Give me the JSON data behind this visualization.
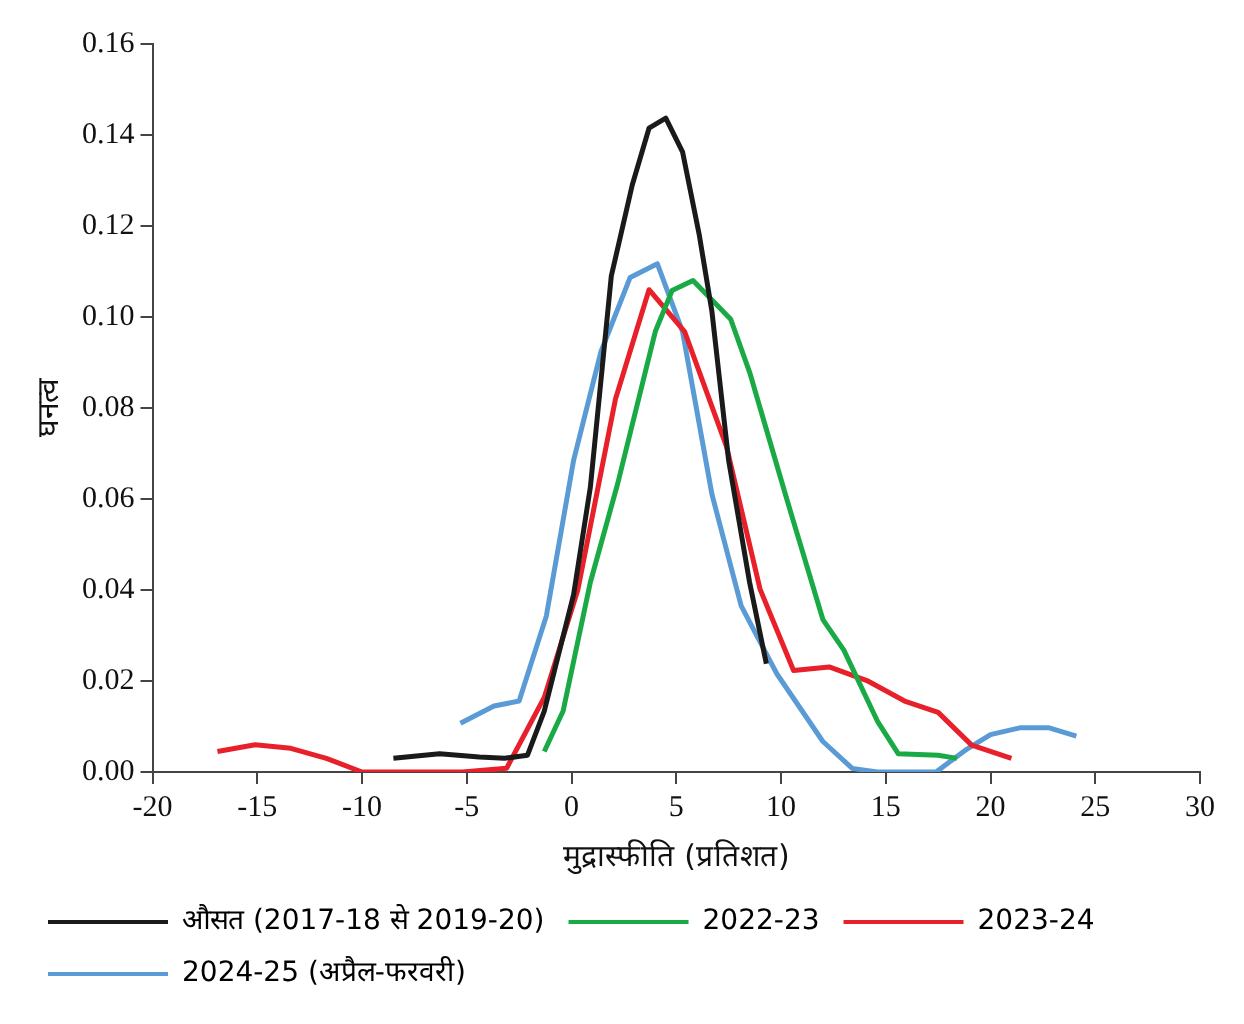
{
  "chart_data": {
    "type": "line",
    "xlabel": "मुद्रास्फीति (प्रतिशत)",
    "ylabel": "घनत्व",
    "xlim": [
      -20,
      30
    ],
    "xticks": [
      -20,
      -15,
      -10,
      -5,
      0,
      5,
      10,
      15,
      20,
      25,
      30
    ],
    "ylim": [
      0,
      0.16
    ],
    "yticks": [
      {
        "value": 0,
        "label": "0.00"
      },
      {
        "value": 0.02,
        "label": "0.02"
      },
      {
        "value": 0.04,
        "label": "0.04"
      },
      {
        "value": 0.06,
        "label": "0.06"
      },
      {
        "value": 0.08,
        "label": "0.08"
      },
      {
        "value": 0.1,
        "label": "0.10"
      },
      {
        "value": 0.12,
        "label": "0.12"
      },
      {
        "value": 0.14,
        "label": "0.14"
      },
      {
        "value": 0.16,
        "label": "0.16"
      }
    ],
    "grid": false,
    "legend": "bottom",
    "marker": "none",
    "line_style": "solid",
    "series": [
      {
        "name": "औसत (2017-18 से 2019-20)",
        "color": "#1a1a1a",
        "x": [
          -8.5,
          -6.3,
          -4.4,
          -3.2,
          -2.1,
          -1.3,
          0.1,
          0.9,
          1.9,
          2.9,
          3.7,
          4.5,
          5.3,
          6.1,
          6.7,
          7.5,
          8.5,
          9.3
        ],
        "values": [
          0.003,
          0.004,
          0.0033,
          0.003,
          0.0037,
          0.0134,
          0.039,
          0.0626,
          0.109,
          0.129,
          0.1415,
          0.1437,
          0.1363,
          0.118,
          0.1013,
          0.0685,
          0.0417,
          0.0238
        ]
      },
      {
        "name": "2022-23",
        "color": "#1aaa45",
        "x": [
          -1.3,
          -0.4,
          0.9,
          2.2,
          4.0,
          4.8,
          5.8,
          7.6,
          8.5,
          10.3,
          12.0,
          13.0,
          14.6,
          15.6,
          17.5,
          18.4
        ],
        "values": [
          0.0045,
          0.0134,
          0.0417,
          0.0633,
          0.0968,
          0.1058,
          0.108,
          0.0995,
          0.0879,
          0.0596,
          0.0335,
          0.0268,
          0.0112,
          0.004,
          0.0037,
          0.003
        ]
      },
      {
        "name": "2023-24",
        "color": "#e8202a",
        "x": [
          -16.9,
          -15.1,
          -13.4,
          -11.7,
          -10.0,
          -5.2,
          -3.1,
          -1.3,
          0.3,
          2.1,
          3.7,
          5.4,
          7.4,
          9.0,
          10.6,
          12.3,
          14.1,
          15.9,
          17.5,
          19.1,
          21.0
        ],
        "values": [
          0.0045,
          0.006,
          0.0052,
          0.003,
          0,
          0,
          0.0008,
          0.0164,
          0.04,
          0.082,
          0.106,
          0.0968,
          0.0715,
          0.0402,
          0.0223,
          0.0231,
          0.0201,
          0.0156,
          0.0131,
          0.0059,
          0.003
        ]
      },
      {
        "name": "2024-25 (अप्रैल-फरवरी)",
        "color": "#5b9bd5",
        "x": [
          -5.3,
          -3.7,
          -2.5,
          -1.2,
          0.1,
          1.4,
          2.8,
          4.1,
          5.3,
          6.7,
          8.1,
          9.8,
          12.0,
          13.4,
          14.6,
          17.4,
          18.8,
          20.0,
          21.4,
          22.8,
          24.1
        ],
        "values": [
          0.0107,
          0.0145,
          0.0156,
          0.0343,
          0.0685,
          0.0923,
          0.1087,
          0.1117,
          0.0968,
          0.0611,
          0.0365,
          0.0216,
          0.0067,
          0.0008,
          0,
          0,
          0.0048,
          0.0082,
          0.0097,
          0.0097,
          0.0079
        ]
      }
    ]
  }
}
